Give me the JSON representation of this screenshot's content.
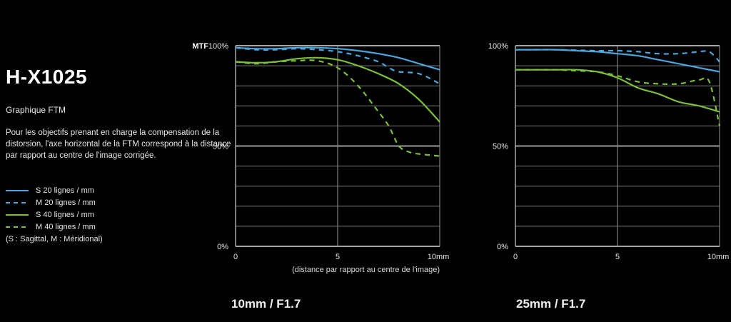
{
  "page": {
    "title": "H-X1025",
    "subtitle": "Graphique FTM",
    "description": "Pour les objectifs prenant en charge la compensation de la distorsion, l'axe horizontal de la FTM correspond à la distance par rapport au centre de l'image corrigée."
  },
  "legend": {
    "items": [
      {
        "label": "S 20 lignes / mm",
        "color": "#4aa6dc",
        "dash": false
      },
      {
        "label": "M 20 lignes / mm",
        "color": "#4aa6dc",
        "dash": true
      },
      {
        "label": "S 40 lignes / mm",
        "color": "#7bbf3a",
        "dash": false
      },
      {
        "label": "M 40 lignes / mm",
        "color": "#7bbf3a",
        "dash": true
      }
    ],
    "note": "(S : Sagittal, M : Méridional)"
  },
  "chart_data": [
    {
      "type": "line",
      "title": "10mm / F1.7",
      "ylabel": "MTF",
      "xlabel": "(distance par rapport au centre de l'image)",
      "xlim": [
        0,
        10
      ],
      "ylim": [
        0,
        100
      ],
      "x_ticks": [
        "0",
        "5",
        "10mm"
      ],
      "y_ticks": [
        "0%",
        "50%",
        "100%"
      ],
      "grid": true,
      "series": [
        {
          "name": "S 20 lignes / mm",
          "color": "#4aa6dc",
          "dash": false,
          "points": [
            [
              0,
              99
            ],
            [
              1,
              98.5
            ],
            [
              2,
              98.5
            ],
            [
              3,
              99
            ],
            [
              4,
              99
            ],
            [
              5,
              98.5
            ],
            [
              6,
              97.5
            ],
            [
              7,
              96
            ],
            [
              8,
              94
            ],
            [
              9,
              91
            ],
            [
              10,
              88
            ]
          ]
        },
        {
          "name": "M 20 lignes / mm",
          "color": "#4aa6dc",
          "dash": true,
          "points": [
            [
              0,
              99
            ],
            [
              1,
              98
            ],
            [
              2,
              98
            ],
            [
              3,
              98.5
            ],
            [
              4,
              98
            ],
            [
              5,
              97
            ],
            [
              6,
              95
            ],
            [
              7,
              92
            ],
            [
              7.5,
              89
            ],
            [
              8,
              87
            ],
            [
              9,
              86
            ],
            [
              10,
              81
            ]
          ]
        },
        {
          "name": "S 40 lignes / mm",
          "color": "#7bbf3a",
          "dash": false,
          "points": [
            [
              0,
              92
            ],
            [
              1,
              91.5
            ],
            [
              2,
              92
            ],
            [
              3,
              93.5
            ],
            [
              4,
              94
            ],
            [
              5,
              93
            ],
            [
              6,
              90
            ],
            [
              7,
              86
            ],
            [
              8,
              81
            ],
            [
              9,
              73
            ],
            [
              10,
              62
            ]
          ]
        },
        {
          "name": "M 40 lignes / mm",
          "color": "#7bbf3a",
          "dash": true,
          "points": [
            [
              0,
              92
            ],
            [
              1,
              91
            ],
            [
              2,
              92
            ],
            [
              3,
              92.5
            ],
            [
              4,
              92.5
            ],
            [
              5,
              89
            ],
            [
              6,
              80
            ],
            [
              7,
              67
            ],
            [
              7.5,
              60
            ],
            [
              8,
              50
            ],
            [
              8.5,
              47
            ],
            [
              9,
              46
            ],
            [
              10,
              45
            ]
          ]
        }
      ]
    },
    {
      "type": "line",
      "title": "25mm / F1.7",
      "xlim": [
        0,
        10
      ],
      "ylim": [
        0,
        100
      ],
      "x_ticks": [
        "0",
        "5",
        "10mm"
      ],
      "y_ticks": [
        "0%",
        "50%",
        "100%"
      ],
      "grid": true,
      "series": [
        {
          "name": "S 20 lignes / mm",
          "color": "#4aa6dc",
          "dash": false,
          "points": [
            [
              0,
              98
            ],
            [
              1,
              98
            ],
            [
              2,
              98
            ],
            [
              3,
              97.5
            ],
            [
              4,
              97
            ],
            [
              5,
              96
            ],
            [
              6,
              95
            ],
            [
              7,
              93
            ],
            [
              8,
              91
            ],
            [
              9,
              89
            ],
            [
              10,
              87
            ]
          ]
        },
        {
          "name": "M 20 lignes / mm",
          "color": "#4aa6dc",
          "dash": true,
          "points": [
            [
              0,
              98
            ],
            [
              2,
              98
            ],
            [
              4,
              97.5
            ],
            [
              5,
              97.5
            ],
            [
              6,
              97
            ],
            [
              7,
              96
            ],
            [
              8,
              96
            ],
            [
              9,
              97
            ],
            [
              9.5,
              97
            ],
            [
              10,
              92
            ]
          ]
        },
        {
          "name": "S 40 lignes / mm",
          "color": "#7bbf3a",
          "dash": false,
          "points": [
            [
              0,
              88
            ],
            [
              1,
              88
            ],
            [
              2,
              88
            ],
            [
              3,
              88
            ],
            [
              4,
              87
            ],
            [
              5,
              84
            ],
            [
              6,
              79
            ],
            [
              7,
              76
            ],
            [
              8,
              72
            ],
            [
              9,
              70
            ],
            [
              10,
              67
            ]
          ]
        },
        {
          "name": "M 40 lignes / mm",
          "color": "#7bbf3a",
          "dash": true,
          "points": [
            [
              0,
              88
            ],
            [
              1,
              88
            ],
            [
              2,
              88
            ],
            [
              3,
              87.5
            ],
            [
              4,
              87
            ],
            [
              5,
              85
            ],
            [
              6,
              82
            ],
            [
              7,
              81
            ],
            [
              8,
              81
            ],
            [
              9,
              83
            ],
            [
              9.5,
              82
            ],
            [
              10,
              60
            ]
          ]
        }
      ]
    }
  ]
}
